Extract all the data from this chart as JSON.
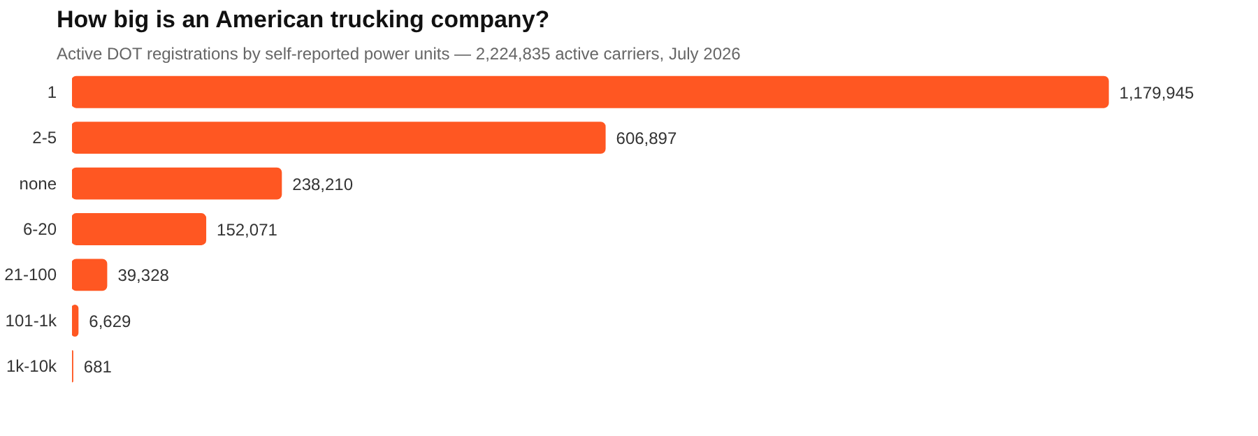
{
  "chart_data": {
    "type": "bar",
    "orientation": "horizontal",
    "title": "How big is an American trucking company?",
    "subtitle": "Active DOT registrations by self-reported power units — 2,224,835 active carriers, July 2026",
    "categories": [
      "1",
      "2-5",
      "none",
      "6-20",
      "21-100",
      "101-1k",
      "1k-10k"
    ],
    "values": [
      1179945,
      606897,
      238210,
      152071,
      39328,
      6629,
      681
    ],
    "value_labels": [
      "1,179,945",
      "606,897",
      "238,210",
      "152,071",
      "39,328",
      "6,629",
      "681"
    ],
    "color": "#ff5722",
    "grid": false,
    "tick_labels": "y"
  }
}
